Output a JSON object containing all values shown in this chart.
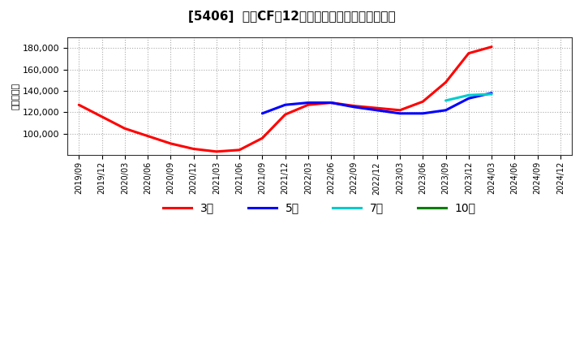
{
  "title": "[5406]  営業CFだ12か月移動合計の平均値の推移",
  "ylabel": "（百万円）",
  "background_color": "#ffffff",
  "plot_bg_color": "#ffffff",
  "grid_color": "#aaaaaa",
  "ylim": [
    80000,
    190000
  ],
  "yticks": [
    100000,
    120000,
    140000,
    160000,
    180000
  ],
  "series": {
    "3年": {
      "color": "#ff0000",
      "dates": [
        "2019/09",
        "2019/12",
        "2020/03",
        "2020/06",
        "2020/09",
        "2020/12",
        "2021/03",
        "2021/06",
        "2021/09",
        "2021/12",
        "2022/03",
        "2022/06",
        "2022/09",
        "2022/12",
        "2023/03",
        "2023/06",
        "2023/09",
        "2023/12",
        "2024/03"
      ],
      "values": [
        127000,
        116000,
        105000,
        98000,
        91000,
        86000,
        83500,
        85000,
        96000,
        118000,
        127000,
        129000,
        126000,
        124000,
        122000,
        130000,
        148000,
        175000,
        181000
      ]
    },
    "5年": {
      "color": "#0000ff",
      "dates": [
        "2021/09",
        "2021/12",
        "2022/03",
        "2022/06",
        "2022/09",
        "2022/12",
        "2023/03",
        "2023/06",
        "2023/09",
        "2023/12",
        "2024/03"
      ],
      "values": [
        119000,
        127000,
        129000,
        129000,
        125000,
        122000,
        119000,
        119000,
        122000,
        133000,
        138000
      ]
    },
    "7年": {
      "color": "#00cccc",
      "dates": [
        "2023/09",
        "2023/12",
        "2024/03"
      ],
      "values": [
        131000,
        136000,
        137000
      ]
    },
    "10年": {
      "color": "#008000",
      "dates": [],
      "values": []
    }
  },
  "legend_labels": [
    "3年",
    "5年",
    "7年",
    "10年"
  ],
  "legend_colors": [
    "#ff0000",
    "#0000ff",
    "#00cccc",
    "#008000"
  ],
  "x_tick_labels": [
    "2019/09",
    "2019/12",
    "2020/03",
    "2020/06",
    "2020/09",
    "2020/12",
    "2021/03",
    "2021/06",
    "2021/09",
    "2021/12",
    "2022/03",
    "2022/06",
    "2022/09",
    "2022/12",
    "2023/03",
    "2023/06",
    "2023/09",
    "2023/12",
    "2024/03",
    "2024/06",
    "2024/09",
    "2024/12"
  ]
}
